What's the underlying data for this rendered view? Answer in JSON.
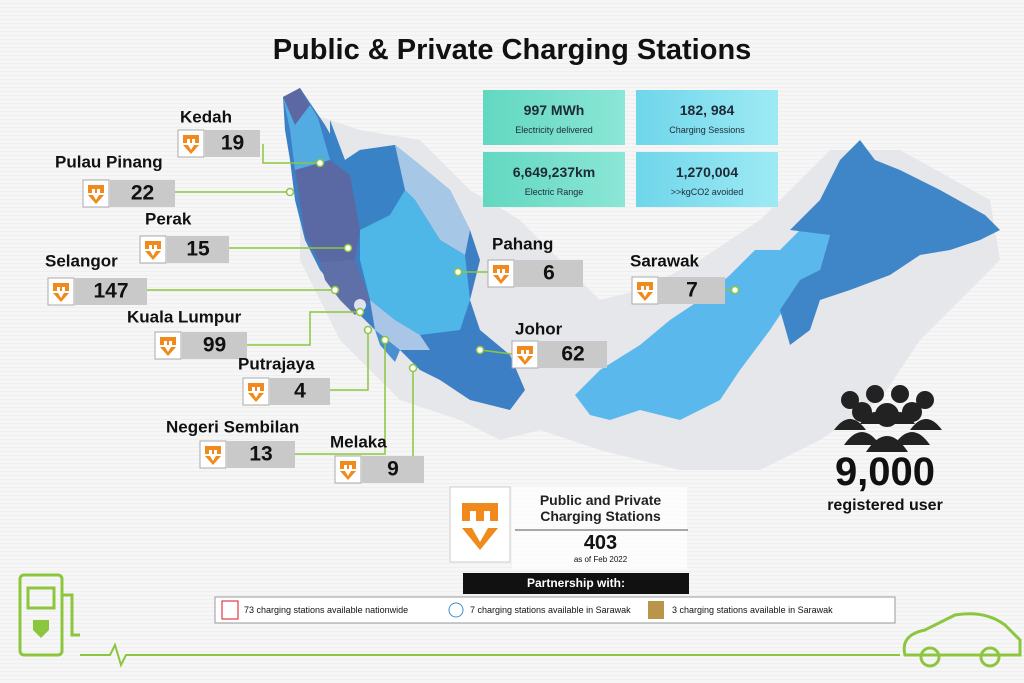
{
  "title": "Public & Private Charging Stations",
  "states": [
    {
      "name": "Kedah",
      "stations": 19
    },
    {
      "name": "Pulau Pinang",
      "stations": 22
    },
    {
      "name": "Perak",
      "stations": 15
    },
    {
      "name": "Selangor",
      "stations": 147
    },
    {
      "name": "Kuala Lumpur",
      "stations": 99
    },
    {
      "name": "Putrajaya",
      "stations": 4
    },
    {
      "name": "Negeri Sembilan",
      "stations": 13
    },
    {
      "name": "Melaka",
      "stations": 9
    },
    {
      "name": "Pahang",
      "stations": 6
    },
    {
      "name": "Johor",
      "stations": 62
    },
    {
      "name": "Sarawak",
      "stations": 7
    }
  ],
  "stats": [
    {
      "value": "997 MWh",
      "label": "Electricity delivered"
    },
    {
      "value": "182, 984",
      "label": "Charging Sessions"
    },
    {
      "value": "6,649,237km",
      "label": "Electric Range"
    },
    {
      "value": "1,270,004",
      "label": ">>kgCO2 avoided"
    }
  ],
  "users": {
    "value": "9,000",
    "label": "registered user"
  },
  "total": {
    "label": "Public and Private Charging Stations",
    "value": 403,
    "note": "as of Feb 2022"
  },
  "partnership": {
    "heading": "Partnership with:",
    "partners": [
      "73 charging stations available nationwide",
      "7 charging stations available in Sarawak",
      "3 charging stations available in Sarawak"
    ]
  }
}
